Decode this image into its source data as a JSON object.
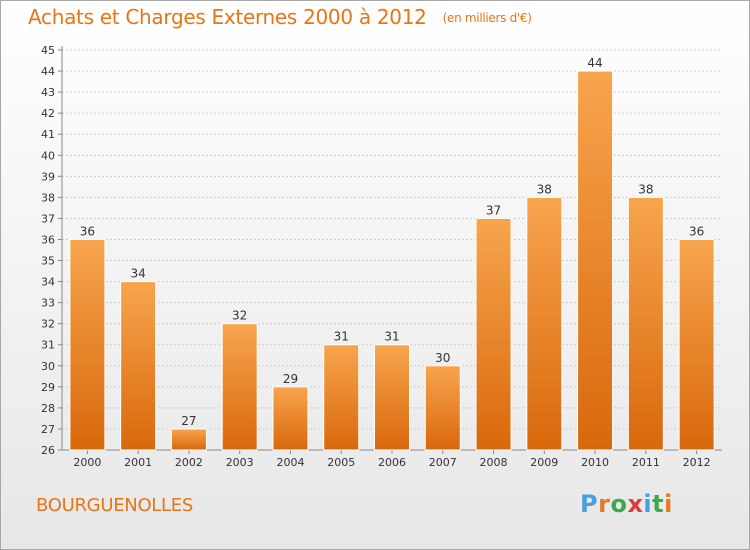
{
  "header": {
    "title": "Achats et Charges Externes 2000 à 2012",
    "unit": "(en milliers d'€)"
  },
  "footer": {
    "location": "BOURGUENOLLES",
    "logo_text": "Proxiti"
  },
  "colors": {
    "bar_light": "#f7a54e",
    "bar_dark": "#d9680c",
    "title": "#e87514",
    "logo": [
      "#4a9fe0",
      "#e8781e",
      "#3bab4a",
      "#e23a3a",
      "#4a9fe0",
      "#3bab4a",
      "#e8781e"
    ]
  },
  "chart_data": {
    "type": "bar",
    "title": "Achats et Charges Externes 2000 à 2012",
    "categories": [
      "2000",
      "2001",
      "2002",
      "2003",
      "2004",
      "2005",
      "2006",
      "2007",
      "2008",
      "2009",
      "2010",
      "2011",
      "2012"
    ],
    "values": [
      36,
      34,
      27,
      32,
      29,
      31,
      31,
      30,
      37,
      38,
      44,
      38,
      36
    ],
    "ylim": [
      26,
      45
    ],
    "yticks": [
      26,
      27,
      28,
      29,
      30,
      31,
      32,
      33,
      34,
      35,
      36,
      37,
      38,
      39,
      40,
      41,
      42,
      43,
      44,
      45
    ],
    "grid": true,
    "legend": "none"
  }
}
